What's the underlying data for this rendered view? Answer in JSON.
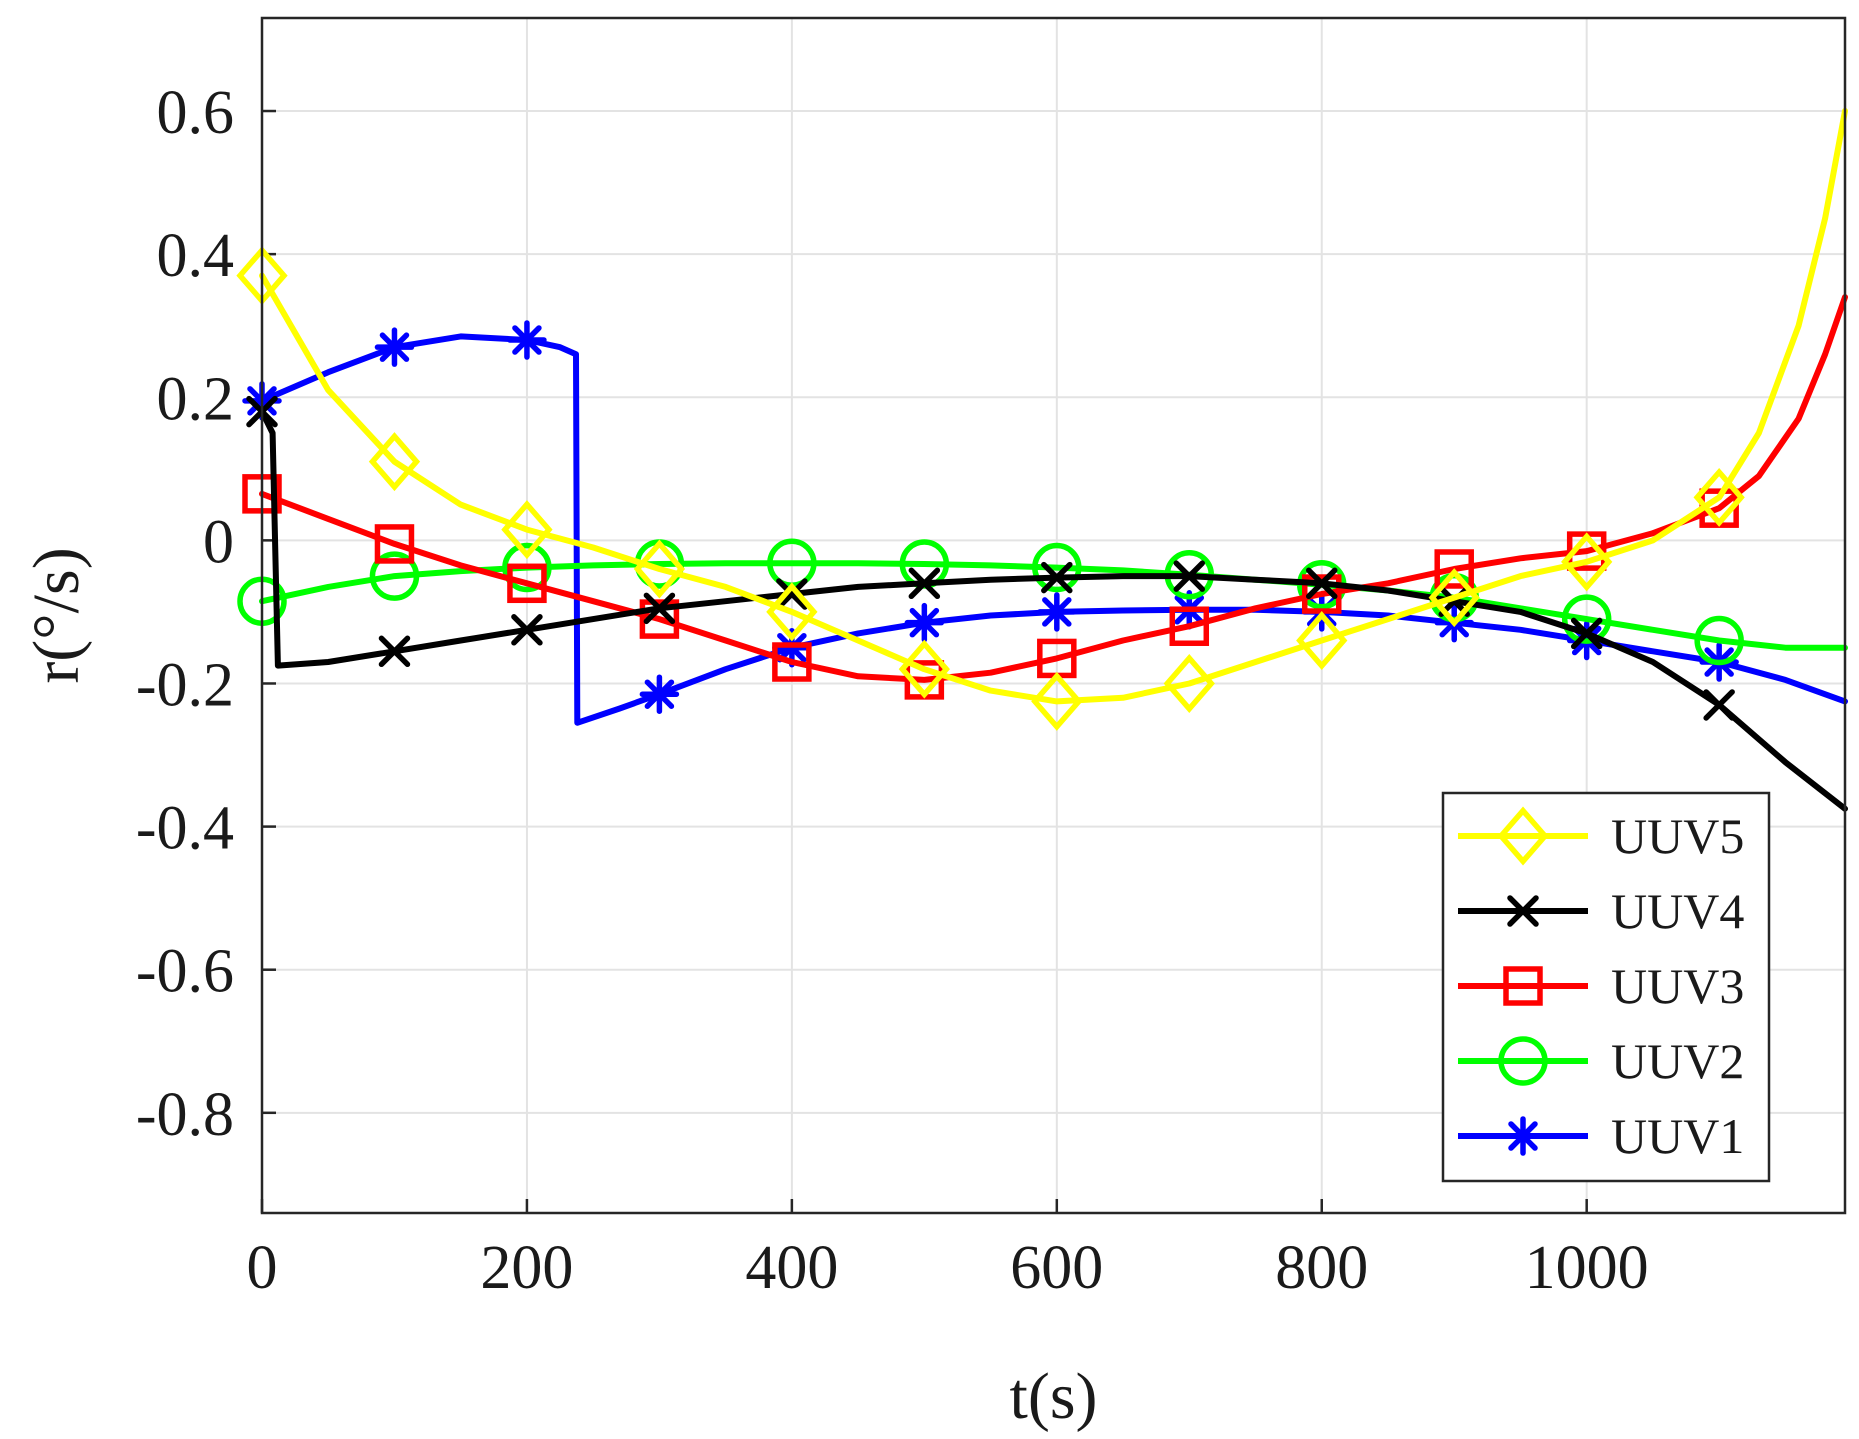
{
  "chart_data": {
    "type": "line",
    "xlabel": "t(s)",
    "ylabel": "r(°/s)",
    "xlim": [
      0,
      1195
    ],
    "ylim": [
      -0.94,
      0.73
    ],
    "xticks": [
      0,
      200,
      400,
      600,
      800,
      1000
    ],
    "yticks": [
      -0.8,
      -0.6,
      -0.4,
      -0.2,
      0,
      0.2,
      0.4,
      0.6
    ],
    "grid": true,
    "legend_position": "bottom-right",
    "series": [
      {
        "name": "UUV5",
        "color": "#ffff00",
        "marker": "diamond",
        "x": [
          0,
          50,
          100,
          150,
          200,
          250,
          300,
          350,
          400,
          450,
          500,
          550,
          600,
          650,
          700,
          750,
          800,
          850,
          900,
          950,
          1000,
          1050,
          1100,
          1130,
          1160,
          1180,
          1195
        ],
        "y": [
          0.37,
          0.21,
          0.11,
          0.05,
          0.015,
          -0.01,
          -0.04,
          -0.065,
          -0.1,
          -0.14,
          -0.18,
          -0.21,
          -0.225,
          -0.22,
          -0.2,
          -0.17,
          -0.14,
          -0.11,
          -0.08,
          -0.05,
          -0.03,
          0.0,
          0.06,
          0.15,
          0.3,
          0.45,
          0.6
        ],
        "marker_x": [
          0,
          100,
          200,
          300,
          400,
          500,
          600,
          700,
          800,
          900,
          1000,
          1100
        ]
      },
      {
        "name": "UUV4",
        "color": "#000000",
        "marker": "x",
        "x": [
          0,
          8,
          12,
          50,
          100,
          150,
          200,
          250,
          300,
          350,
          400,
          450,
          500,
          550,
          600,
          650,
          700,
          750,
          800,
          850,
          900,
          950,
          1000,
          1050,
          1100,
          1150,
          1195
        ],
        "y": [
          0.18,
          0.15,
          -0.175,
          -0.17,
          -0.155,
          -0.14,
          -0.125,
          -0.11,
          -0.095,
          -0.085,
          -0.075,
          -0.065,
          -0.06,
          -0.055,
          -0.052,
          -0.05,
          -0.05,
          -0.055,
          -0.06,
          -0.07,
          -0.085,
          -0.1,
          -0.13,
          -0.17,
          -0.23,
          -0.31,
          -0.375
        ],
        "marker_x": [
          0,
          100,
          200,
          300,
          400,
          500,
          600,
          700,
          800,
          900,
          1000,
          1100
        ]
      },
      {
        "name": "UUV3",
        "color": "#ff0000",
        "marker": "square",
        "x": [
          0,
          50,
          100,
          150,
          200,
          250,
          300,
          350,
          400,
          450,
          500,
          550,
          600,
          650,
          700,
          750,
          800,
          850,
          900,
          950,
          1000,
          1050,
          1100,
          1130,
          1160,
          1180,
          1195
        ],
        "y": [
          0.065,
          0.03,
          -0.005,
          -0.035,
          -0.06,
          -0.085,
          -0.11,
          -0.14,
          -0.17,
          -0.19,
          -0.195,
          -0.185,
          -0.165,
          -0.14,
          -0.12,
          -0.095,
          -0.075,
          -0.06,
          -0.04,
          -0.025,
          -0.015,
          0.01,
          0.045,
          0.09,
          0.17,
          0.26,
          0.34
        ],
        "marker_x": [
          0,
          100,
          200,
          300,
          400,
          500,
          600,
          700,
          800,
          900,
          1000,
          1100
        ]
      },
      {
        "name": "UUV2",
        "color": "#00ff00",
        "marker": "circle",
        "x": [
          0,
          50,
          100,
          150,
          200,
          250,
          300,
          350,
          400,
          450,
          500,
          550,
          600,
          650,
          700,
          750,
          800,
          850,
          900,
          950,
          1000,
          1050,
          1100,
          1150,
          1195
        ],
        "y": [
          -0.085,
          -0.065,
          -0.05,
          -0.043,
          -0.038,
          -0.035,
          -0.033,
          -0.032,
          -0.032,
          -0.032,
          -0.033,
          -0.035,
          -0.038,
          -0.042,
          -0.048,
          -0.055,
          -0.062,
          -0.07,
          -0.08,
          -0.095,
          -0.11,
          -0.125,
          -0.14,
          -0.15,
          -0.15
        ],
        "marker_x": [
          0,
          100,
          200,
          300,
          400,
          500,
          600,
          700,
          800,
          900,
          1000,
          1100
        ]
      },
      {
        "name": "UUV1",
        "color": "#0000ff",
        "marker": "asterisk",
        "x": [
          0,
          50,
          100,
          150,
          200,
          225,
          237,
          238,
          270,
          300,
          350,
          400,
          450,
          500,
          550,
          600,
          650,
          700,
          750,
          800,
          850,
          900,
          950,
          1000,
          1050,
          1100,
          1150,
          1195
        ],
        "y": [
          0.195,
          0.235,
          0.27,
          0.285,
          0.28,
          0.27,
          0.26,
          -0.255,
          -0.235,
          -0.215,
          -0.18,
          -0.15,
          -0.13,
          -0.115,
          -0.105,
          -0.1,
          -0.098,
          -0.097,
          -0.097,
          -0.1,
          -0.105,
          -0.115,
          -0.125,
          -0.14,
          -0.155,
          -0.17,
          -0.195,
          -0.225
        ],
        "marker_x": [
          0,
          100,
          200,
          300,
          400,
          500,
          600,
          700,
          800,
          900,
          1000,
          1100
        ]
      }
    ]
  }
}
